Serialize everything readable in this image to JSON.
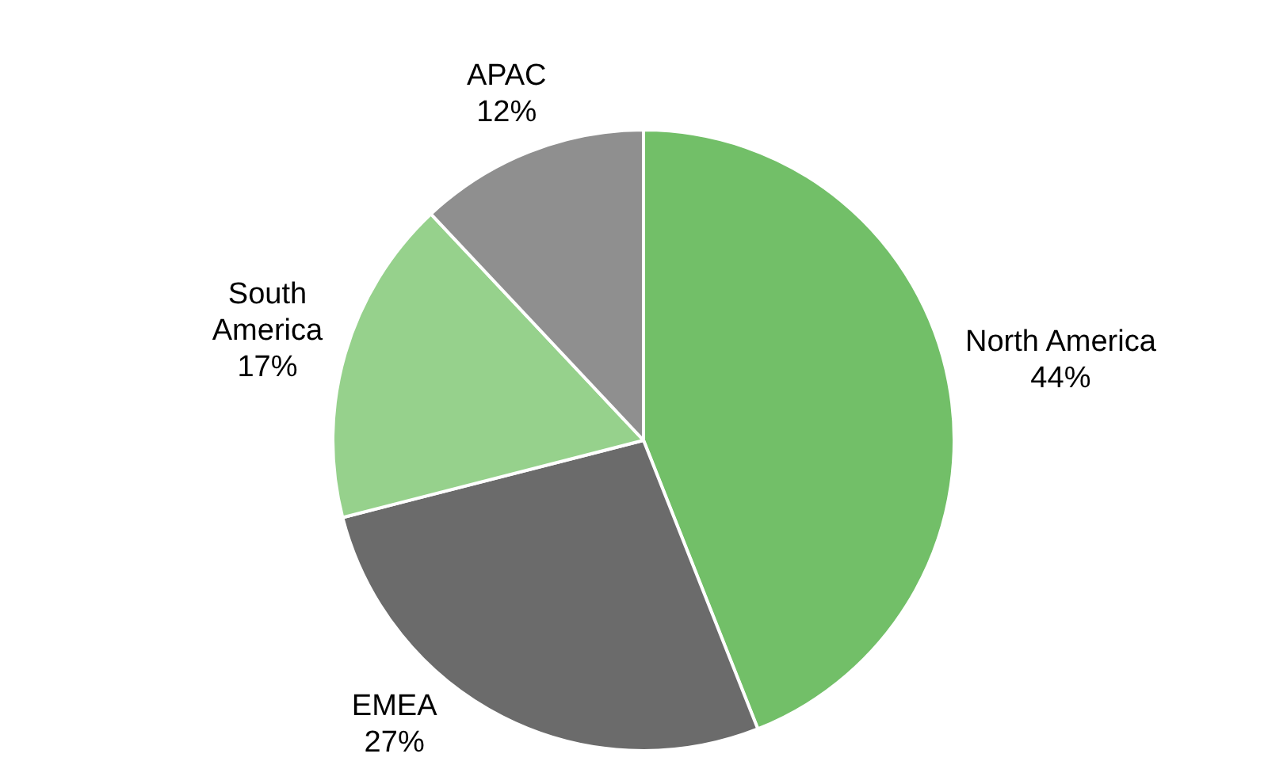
{
  "chart_data": {
    "type": "pie",
    "categories": [
      "North America",
      "EMEA",
      "South America",
      "APAC"
    ],
    "values": [
      44,
      27,
      17,
      12
    ],
    "colors": [
      "#72bf68",
      "#6b6b6b",
      "#96d18c",
      "#8f8f8f"
    ],
    "value_labels": [
      "44%",
      "27%",
      "17%",
      "12%"
    ]
  }
}
